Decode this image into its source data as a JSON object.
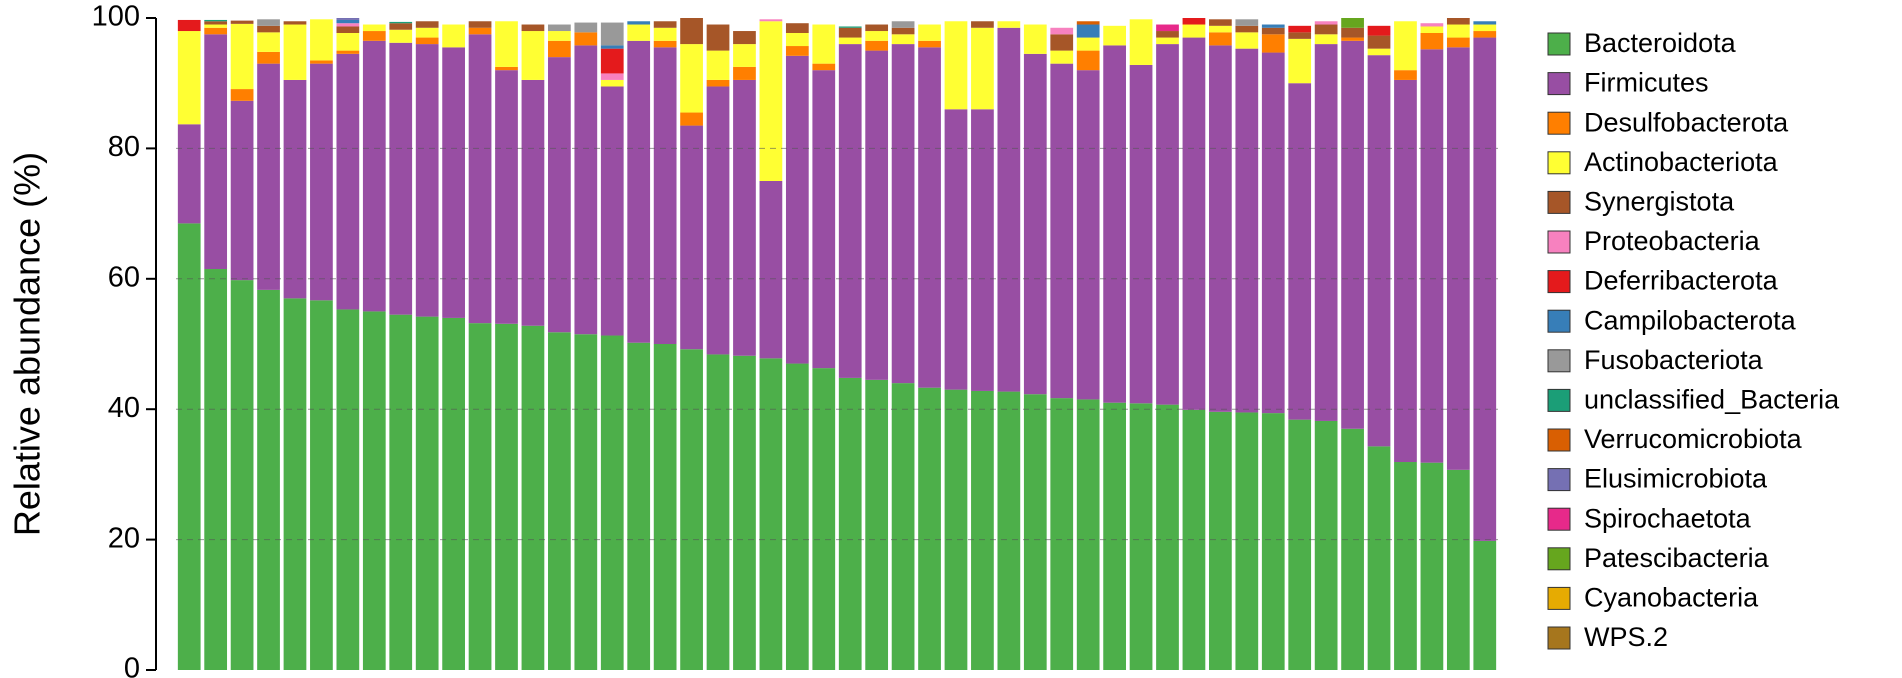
{
  "chart_data": {
    "type": "stacked_bar",
    "y_label": "Relative abundance (%)",
    "ylim": [
      0,
      100
    ],
    "yticks": [
      0,
      20,
      40,
      60,
      80,
      100
    ],
    "grid": true,
    "legend": "right",
    "series": [
      {
        "name": "Bacteroidota",
        "color": "#4daf4a",
        "values": [
          68.5,
          61.5,
          59.8,
          58.3,
          57,
          56.7,
          55.3,
          55,
          54.5,
          54.2,
          54,
          53.2,
          53.1,
          52.8,
          51.8,
          51.5,
          51.3,
          50.2,
          50,
          49.2,
          48.4,
          48.2,
          47.8,
          47,
          46.3,
          44.8,
          44.5,
          44,
          43.3,
          43,
          42.8,
          42.7,
          42.3,
          41.7,
          41.5,
          41,
          40.9,
          40.7,
          39.9,
          39.6,
          39.5,
          39.4,
          38.4,
          38.2,
          37,
          34.3,
          31.9,
          31.8,
          30.7,
          19.8
        ]
      },
      {
        "name": "Firmicutes",
        "color": "#984ea3",
        "values": [
          15.2,
          36,
          27.5,
          34.7,
          33.5,
          36.3,
          39.2,
          41.5,
          41.7,
          41.8,
          41.5,
          44.3,
          38.9,
          37.7,
          42.2,
          44.3,
          38.2,
          46.3,
          45.5,
          34.3,
          41.1,
          42.3,
          27.2,
          47.2,
          45.7,
          51.2,
          50.5,
          52,
          52.2,
          43,
          43.2,
          55.8,
          52.2,
          51.3,
          50.5,
          54.8,
          51.9,
          55.3,
          57.1,
          56.2,
          55.8,
          55.3,
          51.6,
          57.8,
          59.5,
          60,
          58.6,
          63.4,
          64.8,
          77.2
        ]
      },
      {
        "name": "Desulfobacterota",
        "color": "#ff7f00",
        "values": [
          0,
          1,
          1.8,
          1.8,
          0,
          0.5,
          0.5,
          1.5,
          0,
          1,
          0,
          1,
          0.5,
          0,
          2.5,
          2,
          0,
          0,
          1,
          2,
          1,
          2,
          0,
          1.5,
          1,
          0,
          1.5,
          0,
          1,
          0,
          0,
          0,
          0,
          0,
          3,
          0,
          0,
          0,
          0,
          2,
          0,
          2.8,
          0,
          0,
          0.5,
          0,
          1.5,
          2.5,
          1.5,
          1
        ]
      },
      {
        "name": "Actinobacteriota",
        "color": "#ffff33",
        "values": [
          14.3,
          0.5,
          10,
          3,
          8.5,
          6.3,
          2.7,
          1,
          2,
          1.5,
          3.5,
          0,
          7,
          7.5,
          1.5,
          0,
          1,
          2.5,
          2,
          10.5,
          4.5,
          3.5,
          24.5,
          2,
          6,
          1,
          1.5,
          1.5,
          2.5,
          13.5,
          12.5,
          1,
          4.5,
          2,
          2,
          3,
          7,
          1,
          2,
          1,
          2.5,
          0,
          6.8,
          1.5,
          0,
          1,
          7.5,
          1,
          2,
          1
        ]
      },
      {
        "name": "Synergistota",
        "color": "#a65628",
        "values": [
          0,
          0.5,
          0.5,
          1,
          0.5,
          0,
          1,
          0,
          1,
          1,
          0,
          1,
          0,
          1,
          0,
          0,
          0,
          0,
          1,
          4,
          4,
          2,
          0,
          1.5,
          0,
          1.5,
          1,
          1,
          0,
          0,
          1,
          0,
          0,
          2.5,
          0,
          0,
          0,
          1,
          0,
          1,
          1,
          1,
          1,
          1.5,
          1.5,
          2,
          0,
          0,
          1,
          0
        ]
      },
      {
        "name": "Proteobacteria",
        "color": "#f781bf",
        "values": [
          0,
          0,
          0,
          0,
          0,
          0,
          0.5,
          0,
          0,
          0,
          0,
          0,
          0,
          0,
          0,
          0,
          1,
          0,
          0,
          0,
          0,
          0,
          0.3,
          0,
          0,
          0,
          0,
          0,
          0,
          0,
          0,
          0,
          0,
          1,
          0,
          0,
          0,
          0,
          0,
          0,
          0,
          0,
          0,
          0.5,
          0,
          0,
          0,
          0.5,
          0,
          0
        ]
      },
      {
        "name": "Deferribacterota",
        "color": "#e41a1c",
        "values": [
          1.7,
          0,
          0,
          0,
          0,
          0,
          0,
          0,
          0,
          0,
          0,
          0,
          0,
          0,
          0,
          0,
          3.8,
          0,
          0,
          0,
          0,
          0,
          0,
          0,
          0,
          0,
          0,
          0,
          0,
          0,
          0,
          0,
          0,
          0,
          0,
          0,
          0,
          0,
          1,
          0,
          0,
          0,
          1,
          0,
          0,
          1.5,
          0,
          0,
          0,
          0
        ]
      },
      {
        "name": "Campilobacterota",
        "color": "#377eb8",
        "values": [
          0,
          0,
          0,
          0,
          0,
          0,
          0.5,
          0,
          0,
          0,
          0,
          0,
          0,
          0,
          0,
          0,
          0.5,
          0.5,
          0,
          0,
          0,
          0,
          0,
          0,
          0,
          0,
          0,
          0,
          0,
          0,
          0,
          0,
          0,
          0,
          2,
          0,
          0,
          0,
          0,
          0,
          0,
          0.5,
          0,
          0,
          0,
          0,
          0,
          0,
          0,
          0.5
        ]
      },
      {
        "name": "Fusobacteriota",
        "color": "#999999",
        "values": [
          0,
          0,
          0,
          1,
          0,
          0,
          0,
          0,
          0,
          0,
          0,
          0,
          0,
          0,
          1,
          1.5,
          3.5,
          0,
          0,
          0,
          0,
          0,
          0,
          0,
          0,
          0,
          0,
          1,
          0,
          0,
          0,
          0,
          0,
          0,
          0,
          0,
          0,
          0,
          0,
          0,
          1,
          0,
          0,
          0,
          0,
          0,
          0,
          0,
          0,
          0
        ]
      },
      {
        "name": "unclassified_Bacteria",
        "color": "#1b9e77",
        "values": [
          0,
          0.2,
          0,
          0,
          0,
          0,
          0,
          0,
          0.2,
          0,
          0,
          0,
          0,
          0,
          0,
          0,
          0,
          0,
          0,
          0,
          0,
          0,
          0,
          0,
          0,
          0.2,
          0,
          0,
          0,
          0,
          0,
          0,
          0,
          0,
          0,
          0,
          0,
          0,
          0,
          0,
          0,
          0,
          0,
          0,
          0,
          0,
          0,
          0,
          0,
          0
        ]
      },
      {
        "name": "Verrucomicrobiota",
        "color": "#d95f02",
        "values": [
          0,
          0,
          0,
          0,
          0,
          0,
          0,
          0,
          0,
          0,
          0,
          0,
          0,
          0,
          0,
          0,
          0,
          0,
          0,
          0,
          0,
          0,
          0,
          0,
          0,
          0,
          0,
          0,
          0,
          0,
          0,
          0,
          0,
          0,
          0.5,
          0,
          0,
          0,
          0,
          0,
          0,
          0,
          0,
          0,
          0,
          0,
          0,
          0,
          0,
          0
        ]
      },
      {
        "name": "Elusimicrobiota",
        "color": "#7570b3",
        "values": [
          0,
          0,
          0,
          0,
          0,
          0,
          0.3,
          0,
          0,
          0,
          0,
          0,
          0,
          0,
          0,
          0,
          0,
          0,
          0,
          0,
          0,
          0,
          0,
          0,
          0,
          0,
          0,
          0,
          0,
          0,
          0,
          0,
          0,
          0,
          0,
          0,
          0,
          0,
          0,
          0,
          0,
          0,
          0,
          0,
          0,
          0,
          0,
          0,
          0,
          0
        ]
      },
      {
        "name": "Spirochaetota",
        "color": "#e7298a",
        "values": [
          0,
          0,
          0,
          0,
          0,
          0,
          0,
          0,
          0,
          0,
          0,
          0,
          0,
          0,
          0,
          0,
          0,
          0,
          0,
          0,
          0,
          0,
          0,
          0,
          0,
          0,
          0,
          0,
          0,
          0,
          0,
          0,
          0,
          0,
          0,
          0,
          0,
          1,
          0,
          0,
          0,
          0,
          0,
          0,
          0,
          0,
          0,
          0,
          0,
          0
        ]
      },
      {
        "name": "Patescibacteria",
        "color": "#66a61e",
        "values": [
          0,
          0,
          0,
          0,
          0,
          0,
          0,
          0,
          0,
          0,
          0,
          0,
          0,
          0,
          0,
          0,
          0,
          0,
          0,
          0,
          0,
          0,
          0,
          0,
          0,
          0,
          0,
          0,
          0,
          0,
          0,
          0,
          0,
          0,
          0,
          0,
          0,
          0,
          0,
          0,
          0,
          0,
          0,
          0,
          1.5,
          0,
          0,
          0,
          0,
          0
        ]
      },
      {
        "name": "Cyanobacteria",
        "color": "#e6ab02",
        "values": [
          0,
          0,
          0,
          0,
          0,
          0,
          0,
          0,
          0,
          0,
          0,
          0,
          0,
          0,
          0,
          0,
          0,
          0,
          0,
          0,
          0,
          0,
          0,
          0,
          0,
          0,
          0,
          0,
          0,
          0,
          0,
          0,
          0,
          0,
          0,
          0,
          0,
          0,
          0,
          0,
          0,
          0,
          0,
          0,
          0,
          0,
          0,
          0,
          0,
          0
        ]
      },
      {
        "name": "WPS.2",
        "color": "#a6761d",
        "values": [
          0,
          0,
          0,
          0,
          0,
          0,
          0,
          0,
          0,
          0,
          0,
          0,
          0,
          0,
          0,
          0,
          0,
          0,
          0,
          0,
          0,
          0,
          0,
          0,
          0,
          0,
          0,
          0,
          0,
          0,
          0,
          0,
          0,
          0,
          0,
          0,
          0,
          0,
          0,
          0,
          0,
          0,
          0,
          0,
          0,
          0,
          0,
          0,
          0,
          0
        ]
      }
    ]
  }
}
